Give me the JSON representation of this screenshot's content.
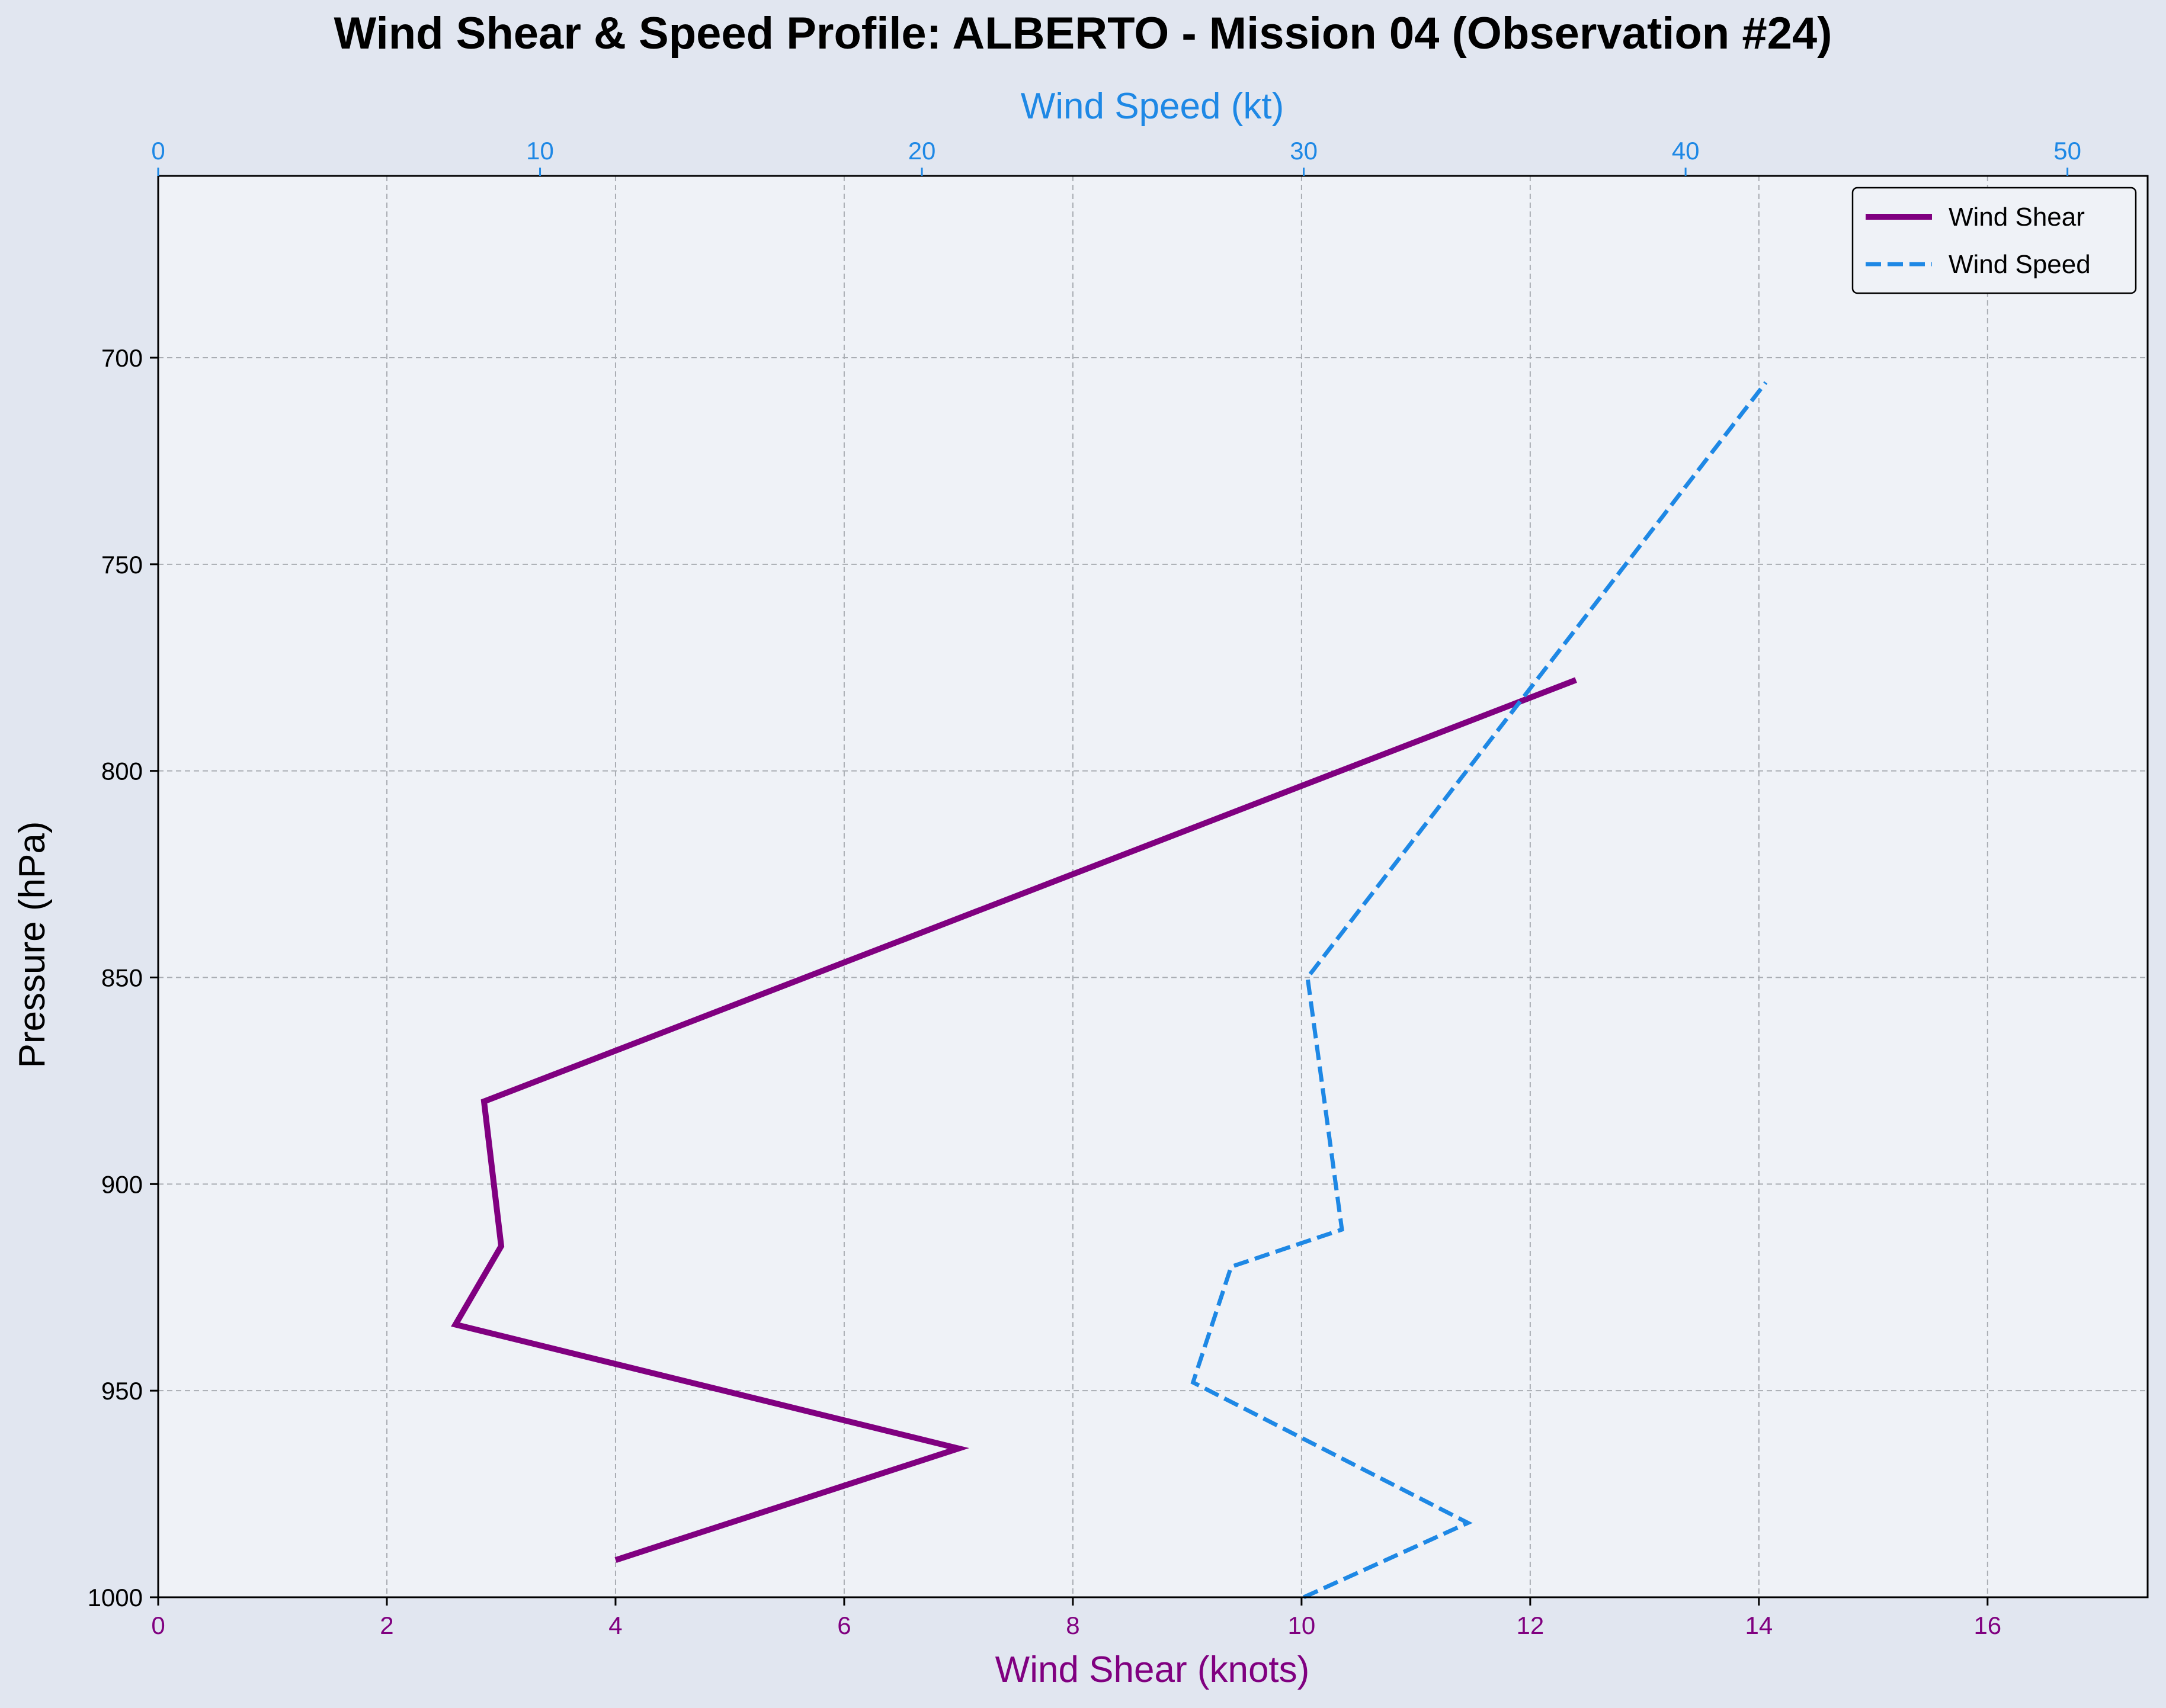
{
  "chart_data": {
    "type": "line",
    "title": "Wind Shear & Speed Profile: ALBERTO - Mission 04 (Observation #24)",
    "ylabel": "Pressure (hPa)",
    "ylim": [
      1000,
      656
    ],
    "y_inverted": true,
    "yticks": [
      700,
      750,
      800,
      850,
      900,
      950,
      1000
    ],
    "bottom_axis": {
      "label": "Wind Shear (knots)",
      "range": [
        0,
        17.4
      ],
      "ticks": [
        0,
        2,
        4,
        6,
        8,
        10,
        12,
        14,
        16
      ],
      "color": "#800080"
    },
    "top_axis": {
      "label": "Wind Speed (kt)",
      "range": [
        0,
        52.1
      ],
      "ticks": [
        0,
        10,
        20,
        30,
        40,
        50
      ],
      "color": "#1e88e5"
    },
    "grid": true,
    "legend_position": "top-right",
    "series": [
      {
        "name": "Wind Shear",
        "axis": "bottom",
        "color": "#800080",
        "style": "solid",
        "points": [
          {
            "pressure": 991,
            "value": 4.0
          },
          {
            "pressure": 964,
            "value": 7.0
          },
          {
            "pressure": 934,
            "value": 2.6
          },
          {
            "pressure": 915,
            "value": 3.0
          },
          {
            "pressure": 880,
            "value": 2.85
          },
          {
            "pressure": 778,
            "value": 12.4
          }
        ]
      },
      {
        "name": "Wind Speed",
        "axis": "top",
        "color": "#1e88e5",
        "style": "dashed",
        "points": [
          {
            "pressure": 1000,
            "value": 30.0
          },
          {
            "pressure": 982,
            "value": 34.3
          },
          {
            "pressure": 948,
            "value": 27.1
          },
          {
            "pressure": 920,
            "value": 28.1
          },
          {
            "pressure": 911,
            "value": 31.0
          },
          {
            "pressure": 850,
            "value": 30.1
          },
          {
            "pressure": 706,
            "value": 42.1
          }
        ]
      }
    ]
  }
}
